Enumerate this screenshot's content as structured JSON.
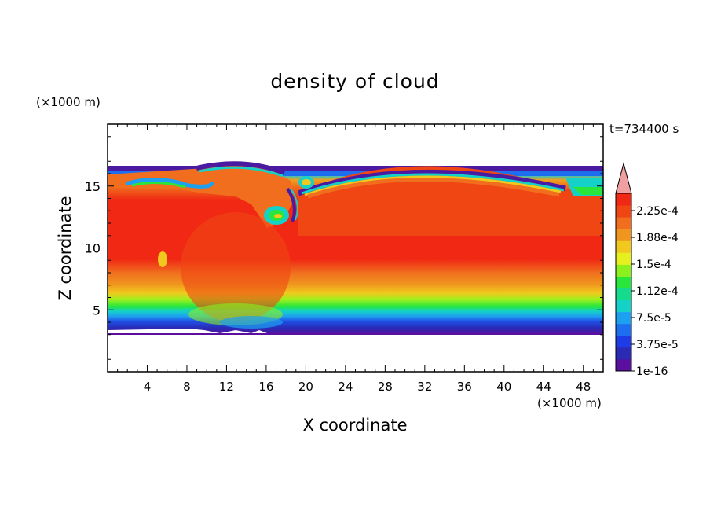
{
  "chart_data": {
    "type": "heatmap",
    "title": "density of cloud",
    "xlabel": "X coordinate",
    "ylabel": "Z coordinate",
    "x_unit": "(×1000 m)",
    "y_unit": "(×1000 m)",
    "time_label": "t=734400 s",
    "xlim": [
      0,
      50
    ],
    "ylim": [
      0,
      20
    ],
    "x_ticks": [
      "4",
      "8",
      "12",
      "16",
      "20",
      "24",
      "28",
      "32",
      "36",
      "40",
      "44",
      "48"
    ],
    "y_ticks": [
      "5",
      "10",
      "15"
    ],
    "colorbar": {
      "min": 1e-16,
      "max": 0.00024,
      "labels": [
        "2.25e-4",
        "1.88e-4",
        "1.5e-4",
        "1.12e-4",
        "7.5e-5",
        "3.75e-5",
        "1e-16"
      ],
      "colors": [
        "#5a0f9e",
        "#2a2ab4",
        "#1e3ce6",
        "#1e6ef0",
        "#1ea0f0",
        "#14d2c8",
        "#14dc8c",
        "#28e63c",
        "#8cf01e",
        "#e6f01e",
        "#f0c81e",
        "#f0961e",
        "#f06e1e",
        "#f04614",
        "#f02814"
      ],
      "extend_max_color": "#f0a0a0"
    },
    "description_bands": [
      {
        "z_range": [
          3.3,
          3.8
        ],
        "level": "1e-16"
      },
      {
        "z_range": [
          3.8,
          5.0
        ],
        "level": "3.75e-5"
      },
      {
        "z_range": [
          5.0,
          6.0
        ],
        "level": "1.12e-4"
      },
      {
        "z_range": [
          6.0,
          8.0
        ],
        "level": "1.88e-4"
      },
      {
        "z_range": [
          8.0,
          15.0
        ],
        "level": "2.25e-4"
      },
      {
        "z_range": [
          15.0,
          16.5
        ],
        "level": "1.5e-4"
      }
    ]
  }
}
